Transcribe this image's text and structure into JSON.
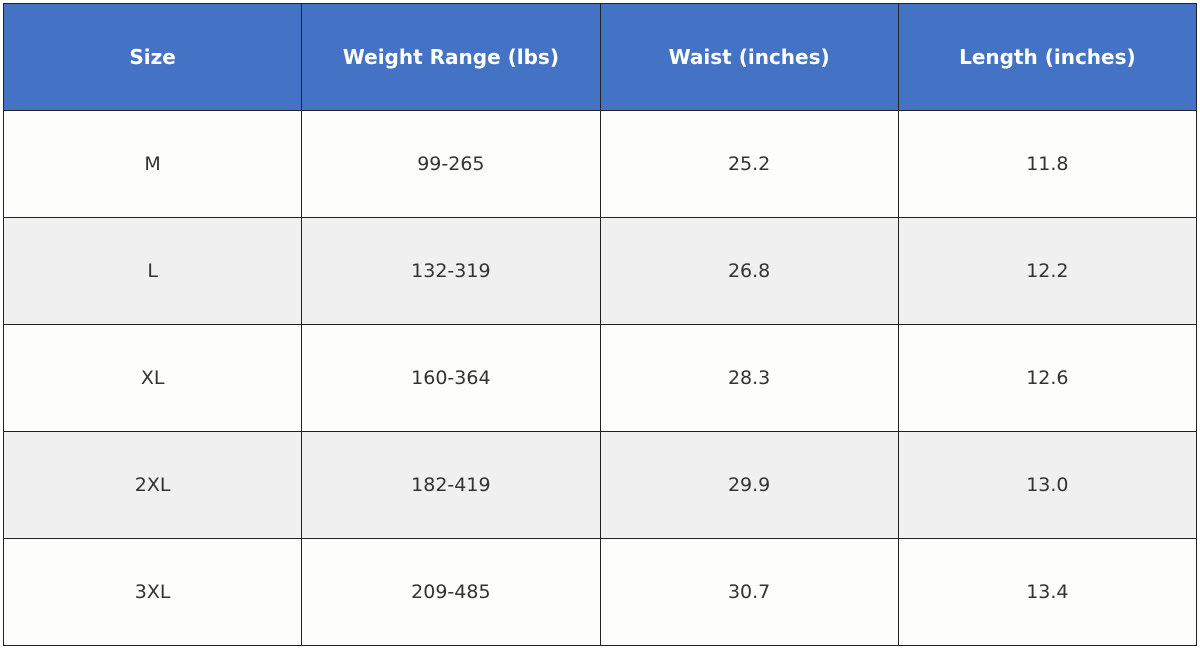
{
  "table": {
    "header": [
      "Size",
      "Weight Range (lbs)",
      "Waist (inches)",
      "Length (inches)"
    ],
    "rows": [
      [
        "M",
        "99-265",
        "25.2",
        "11.8"
      ],
      [
        "L",
        "132-319",
        "26.8",
        "12.2"
      ],
      [
        "XL",
        "160-364",
        "28.3",
        "12.6"
      ],
      [
        "2XL",
        "182-419",
        "29.9",
        "13.0"
      ],
      [
        "3XL",
        "209-485",
        "30.7",
        "13.4"
      ]
    ]
  }
}
